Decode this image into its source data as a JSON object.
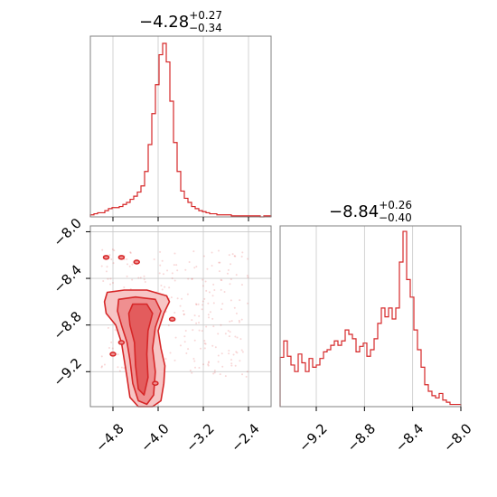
{
  "colors": {
    "series": "#d62728",
    "grid": "#c8c8c8",
    "frame": "#808080",
    "contour_fill_light": "#f7c5c5",
    "contour_fill_mid": "#ef8f90",
    "contour_fill_dark": "#e35c5d"
  },
  "chart_data": [
    {
      "type": "histogram",
      "panel": "top-left",
      "title": "$-4.28^{+0.27}_{-0.34}$",
      "title_parts": {
        "median": "−4.28",
        "plus": "+0.27",
        "minus": "−0.34"
      },
      "xlim": [
        -5.2,
        -2.0
      ],
      "xticks": [
        -4.8,
        -4.0,
        -3.2,
        -2.4
      ],
      "x_bin_edges_start": -5.2,
      "x_bin_width": 0.064,
      "counts": [
        2,
        3,
        4,
        4,
        6,
        8,
        9,
        9,
        10,
        12,
        14,
        17,
        20,
        24,
        30,
        44,
        70,
        100,
        128,
        157,
        168,
        150,
        112,
        72,
        44,
        25,
        18,
        14,
        10,
        8,
        6,
        5,
        4,
        3,
        3,
        2,
        2,
        2,
        2,
        1,
        1,
        1,
        1,
        1,
        1,
        1,
        1,
        0,
        1,
        1
      ],
      "ymax": 175,
      "show_yticks": false,
      "grid": true
    },
    {
      "type": "histogram",
      "panel": "bottom-right",
      "title": "$-8.84^{+0.26}_{-0.40}$",
      "title_parts": {
        "median": "−8.84",
        "plus": "+0.26",
        "minus": "−0.40"
      },
      "xlim": [
        -9.5,
        -8.0
      ],
      "xticks": [
        -9.2,
        -8.8,
        -8.4,
        -8.0
      ],
      "xtick_labels": [
        "−9.2",
        "−8.8",
        "−8.4",
        "−8.0"
      ],
      "x_bin_edges_start": -9.5,
      "x_bin_width": 0.03,
      "counts": [
        45,
        60,
        46,
        38,
        32,
        48,
        40,
        32,
        44,
        36,
        38,
        44,
        50,
        52,
        56,
        60,
        56,
        60,
        70,
        66,
        62,
        50,
        55,
        58,
        46,
        52,
        62,
        76,
        90,
        82,
        90,
        80,
        90,
        132,
        160,
        116,
        100,
        70,
        52,
        36,
        20,
        14,
        10,
        8,
        12,
        6,
        4,
        2,
        2,
        2
      ],
      "ymax": 165,
      "show_yticks": false,
      "grid": true
    },
    {
      "type": "contour",
      "panel": "bottom-left",
      "xlim": [
        -5.2,
        -2.0
      ],
      "ylim": [
        -9.5,
        -7.95
      ],
      "xticks": [
        -4.8,
        -4.0,
        -3.2,
        -2.4
      ],
      "xtick_labels": [
        "−4.8",
        "−4.0",
        "−3.2",
        "−2.4"
      ],
      "yticks": [
        -8.0,
        -8.4,
        -8.8,
        -9.2
      ],
      "ytick_labels": [
        "−8.0",
        "−8.4",
        "−8.8",
        "−9.2"
      ],
      "grid": true,
      "contour_levels": [
        {
          "level": "outer",
          "points": [
            [
              -4.9,
              -8.52
            ],
            [
              -4.6,
              -8.5
            ],
            [
              -4.2,
              -8.5
            ],
            [
              -3.85,
              -8.55
            ],
            [
              -3.8,
              -8.6
            ],
            [
              -3.9,
              -8.7
            ],
            [
              -4.0,
              -8.85
            ],
            [
              -3.95,
              -9.0
            ],
            [
              -3.88,
              -9.15
            ],
            [
              -3.9,
              -9.3
            ],
            [
              -3.95,
              -9.45
            ],
            [
              -4.1,
              -9.5
            ],
            [
              -4.35,
              -9.5
            ],
            [
              -4.5,
              -9.42
            ],
            [
              -4.55,
              -9.25
            ],
            [
              -4.6,
              -9.1
            ],
            [
              -4.65,
              -8.95
            ],
            [
              -4.75,
              -8.8
            ],
            [
              -4.92,
              -8.7
            ],
            [
              -4.95,
              -8.6
            ]
          ]
        },
        {
          "level": "mid",
          "points": [
            [
              -4.7,
              -8.58
            ],
            [
              -4.4,
              -8.56
            ],
            [
              -4.05,
              -8.58
            ],
            [
              -3.95,
              -8.68
            ],
            [
              -4.05,
              -8.82
            ],
            [
              -4.1,
              -9.0
            ],
            [
              -4.05,
              -9.2
            ],
            [
              -4.08,
              -9.4
            ],
            [
              -4.2,
              -9.48
            ],
            [
              -4.35,
              -9.45
            ],
            [
              -4.45,
              -9.3
            ],
            [
              -4.5,
              -9.1
            ],
            [
              -4.55,
              -8.95
            ],
            [
              -4.65,
              -8.8
            ],
            [
              -4.72,
              -8.68
            ]
          ]
        },
        {
          "level": "inner",
          "points": [
            [
              -4.45,
              -8.62
            ],
            [
              -4.2,
              -8.62
            ],
            [
              -4.1,
              -8.7
            ],
            [
              -4.18,
              -8.85
            ],
            [
              -4.2,
              -9.05
            ],
            [
              -4.18,
              -9.25
            ],
            [
              -4.25,
              -9.4
            ],
            [
              -4.35,
              -9.35
            ],
            [
              -4.4,
              -9.15
            ],
            [
              -4.42,
              -8.95
            ],
            [
              -4.5,
              -8.8
            ],
            [
              -4.52,
              -8.7
            ]
          ]
        }
      ],
      "islands": [
        [
          -4.65,
          -8.22
        ],
        [
          -4.38,
          -8.26
        ],
        [
          -4.92,
          -8.22
        ],
        [
          -3.75,
          -8.75
        ],
        [
          -4.65,
          -8.95
        ],
        [
          -4.8,
          -9.05
        ],
        [
          -4.05,
          -9.3
        ]
      ],
      "scatter_seed": 7,
      "scatter_count": 260
    }
  ]
}
